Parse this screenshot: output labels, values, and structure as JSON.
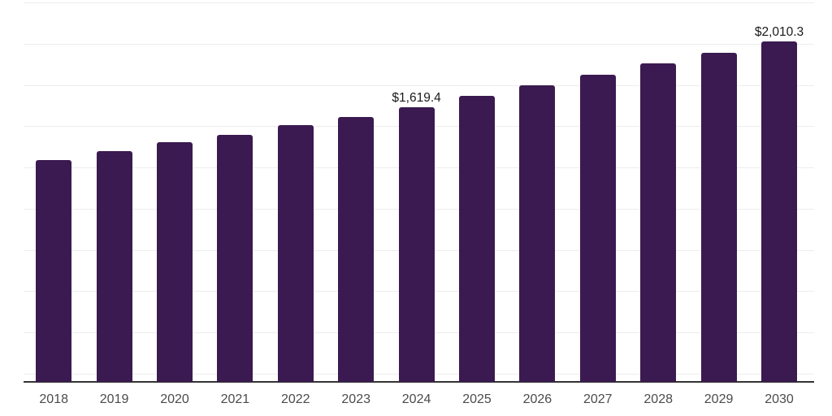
{
  "chart_data": {
    "type": "bar",
    "title": "",
    "xlabel": "",
    "ylabel": "",
    "categories": [
      "2018",
      "2019",
      "2020",
      "2021",
      "2022",
      "2023",
      "2024",
      "2025",
      "2026",
      "2027",
      "2028",
      "2029",
      "2030"
    ],
    "values": [
      1308,
      1361,
      1414,
      1457,
      1515,
      1563,
      1619.4,
      1688,
      1750,
      1813,
      1880,
      1943,
      2010.3
    ],
    "value_labels": [
      "",
      "",
      "",
      "",
      "",
      "",
      "$1,619.4",
      "",
      "",
      "",
      "",
      "",
      "$2,010.3"
    ],
    "ylim": [
      0,
      2240
    ],
    "grid": "horizontal",
    "gridline_count": 10,
    "legend": "none"
  },
  "style": {
    "background": "#FFFFFF",
    "bar_color": "#3A1A50",
    "axis_line_color": "#333333",
    "gridline_color": "#EDEDED",
    "value_label_color": "#1A1A1A",
    "tick_label_color": "#4B4B4B"
  }
}
